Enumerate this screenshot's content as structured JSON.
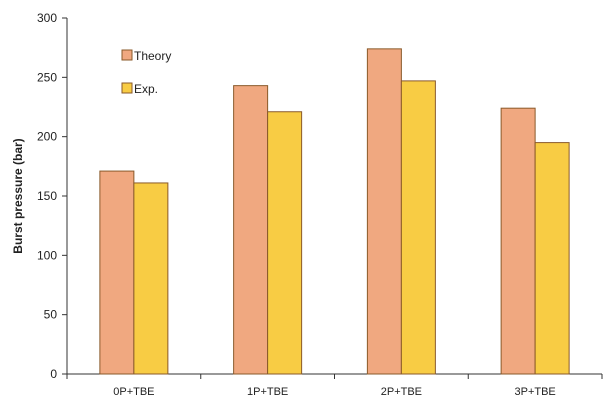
{
  "chart_data": {
    "type": "bar",
    "title": "",
    "xlabel": "",
    "ylabel": "Burst pressure (bar)",
    "ylim": [
      0,
      300
    ],
    "yticks": [
      0,
      50,
      100,
      150,
      200,
      250,
      300
    ],
    "categories": [
      "0P+TBE",
      "1P+TBE",
      "2P+TBE",
      "3P+TBE"
    ],
    "series": [
      {
        "name": "Theory",
        "color": "#F0A880",
        "values": [
          171,
          243,
          274,
          224
        ]
      },
      {
        "name": "Exp.",
        "color": "#F8CC44",
        "values": [
          161,
          221,
          247,
          195
        ]
      }
    ],
    "legend_position": "top-left",
    "grid": false,
    "bar_stroke_color": "#8a5a2a"
  }
}
